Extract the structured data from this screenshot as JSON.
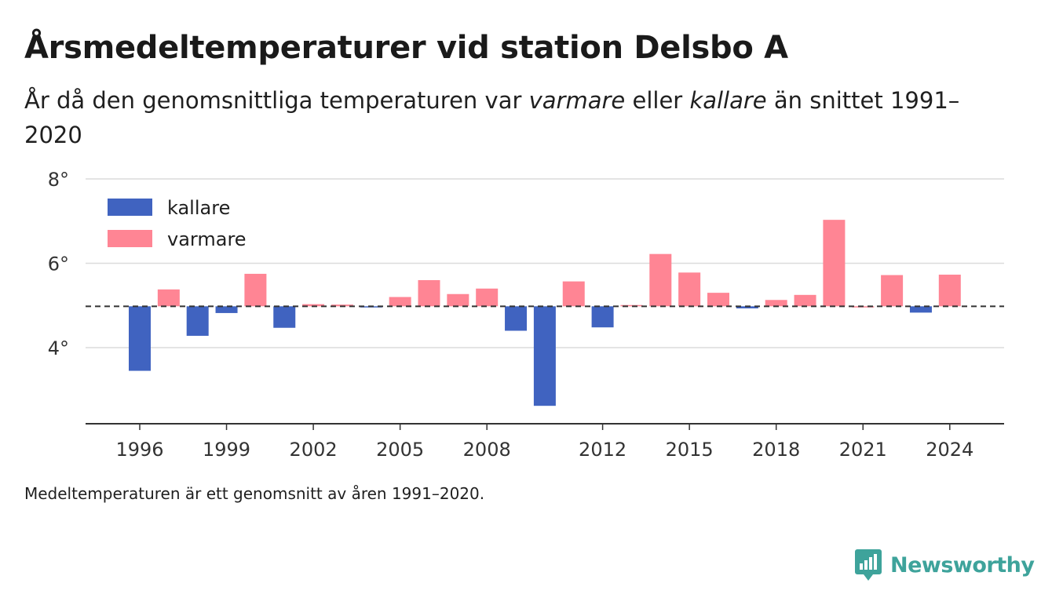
{
  "title": "Årsmedeltemperaturer vid station Delsbo A",
  "subtitle": {
    "part1": "År då den genomsnittliga temperaturen var ",
    "warm_word": "varmare",
    "part2": " eller ",
    "cold_word": "kallare",
    "part3": " än snittet 1991–2020"
  },
  "footnote": "Medeltemperaturen är ett genomsnitt av åren 1991–2020.",
  "brand": "Newsworthy",
  "colors": {
    "cold": "#4063c0",
    "warm": "#ff8594",
    "grid": "#dcdcdc",
    "axis": "#333333",
    "brand": "#3ea39b"
  },
  "chart_data": {
    "type": "bar",
    "title": "",
    "xlabel": "",
    "ylabel": "",
    "baseline": 4.98,
    "ylim": [
      2.2,
      8.2
    ],
    "yticks": [
      4,
      6,
      8
    ],
    "ytick_labels": [
      "4°",
      "6°",
      "8°"
    ],
    "xticks": [
      1996,
      1999,
      2002,
      2005,
      2008,
      2012,
      2015,
      2018,
      2021,
      2024
    ],
    "xlim": [
      1994.2,
      2026.0
    ],
    "grid": true,
    "legend": {
      "placement": "top-left",
      "items": [
        {
          "label": "kallare",
          "color": "#4063c0"
        },
        {
          "label": "varmare",
          "color": "#ff8594"
        }
      ]
    },
    "x": [
      1996,
      1997,
      1998,
      1999,
      2000,
      2001,
      2002,
      2003,
      2004,
      2005,
      2006,
      2007,
      2008,
      2009,
      2010,
      2011,
      2012,
      2013,
      2014,
      2015,
      2016,
      2017,
      2018,
      2019,
      2020,
      2021,
      2022,
      2023,
      2024
    ],
    "values": [
      3.45,
      5.38,
      4.28,
      4.82,
      5.75,
      4.47,
      5.03,
      5.02,
      4.96,
      5.2,
      5.6,
      5.27,
      5.4,
      4.4,
      2.62,
      5.57,
      4.48,
      5.01,
      6.22,
      5.78,
      5.3,
      4.93,
      5.13,
      5.25,
      7.03,
      4.98,
      5.72,
      4.83,
      5.73
    ]
  }
}
